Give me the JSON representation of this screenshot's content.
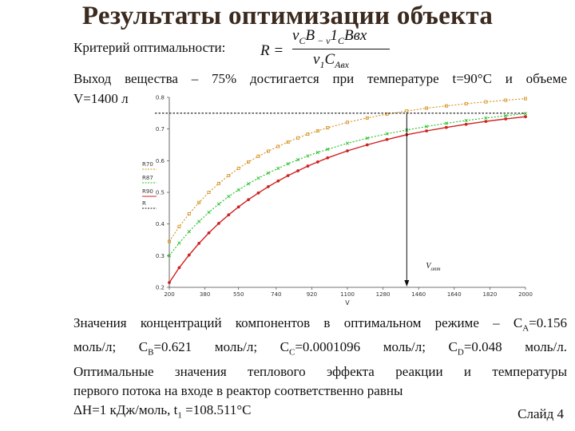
{
  "slide": {
    "title": "Результаты оптимизации объекта",
    "criterion_label": "Критерий оптимальности:",
    "formula": {
      "lhs": "R =",
      "numerator_parts": [
        "ν",
        "C",
        "B",
        " − ν",
        "1",
        "C",
        "Bвх"
      ],
      "denominator_parts": [
        "ν",
        "1",
        "C",
        "Aвх"
      ]
    },
    "yield_line_1": "Выход вещества – 75% достигается при температуре t=90°C и объеме",
    "yield_line_2": "V=1400 л",
    "results_text": {
      "line1": [
        "Значения концентраций компонентов в оптимальном режиме – C",
        "A",
        "=0.156"
      ],
      "line2": [
        "моль/л; C",
        "B",
        "=0.621 моль/л; C",
        "C",
        "=0.0001096 моль/л; C",
        "D",
        "=0.048 моль/л."
      ],
      "line3": "Оптимальные значения теплового эффекта реакции и температуры",
      "line4": "первого потока на входе в реактор соответственно равны",
      "line5": [
        "ΔH=1 кДж/моль, t",
        "1",
        " =108.511°C"
      ]
    },
    "slide_number": "Слайд 4"
  },
  "chart_data": {
    "type": "line",
    "xlabel": "V",
    "ylabel": "",
    "x_ticks": [
      200,
      380,
      550,
      740,
      920,
      1100,
      1280,
      1460,
      1640,
      1820,
      2000
    ],
    "y_ticks": [
      0.2,
      0.3,
      0.4,
      0.5,
      0.6,
      0.7,
      0.8
    ],
    "xlim": [
      200,
      2000
    ],
    "ylim": [
      0.2,
      0.8
    ],
    "x": [
      200,
      250,
      300,
      350,
      400,
      450,
      500,
      550,
      600,
      650,
      700,
      750,
      800,
      850,
      900,
      950,
      1000,
      1100,
      1200,
      1300,
      1400,
      1500,
      1600,
      1700,
      1800,
      1900,
      2000
    ],
    "series": [
      {
        "name": "R70",
        "color": "#d4901c",
        "marker": "square-open",
        "line": "dotted",
        "values": [
          0.345,
          0.392,
          0.432,
          0.468,
          0.5,
          0.528,
          0.553,
          0.576,
          0.596,
          0.614,
          0.63,
          0.645,
          0.659,
          0.672,
          0.684,
          0.694,
          0.704,
          0.721,
          0.735,
          0.747,
          0.757,
          0.766,
          0.773,
          0.78,
          0.786,
          0.791,
          0.796
        ]
      },
      {
        "name": "R87",
        "color": "#25c025",
        "marker": "x",
        "line": "dotted",
        "values": [
          0.3,
          0.34,
          0.376,
          0.408,
          0.437,
          0.463,
          0.487,
          0.508,
          0.527,
          0.545,
          0.561,
          0.576,
          0.59,
          0.603,
          0.615,
          0.626,
          0.636,
          0.655,
          0.671,
          0.685,
          0.697,
          0.708,
          0.718,
          0.727,
          0.735,
          0.742,
          0.749
        ]
      },
      {
        "name": "R90",
        "color": "#d02020",
        "marker": "dot",
        "line": "solid",
        "values": [
          0.215,
          0.262,
          0.302,
          0.339,
          0.372,
          0.402,
          0.429,
          0.454,
          0.477,
          0.498,
          0.518,
          0.536,
          0.553,
          0.568,
          0.583,
          0.596,
          0.609,
          0.631,
          0.65,
          0.667,
          0.682,
          0.694,
          0.705,
          0.715,
          0.724,
          0.732,
          0.739
        ]
      }
    ],
    "extra_legend_entry": "R",
    "legend_position": "left",
    "annotations": {
      "optimum_label": "V_opt",
      "optimum_label_main": "V",
      "optimum_label_sub": "опт",
      "optimum_x": 1400,
      "target_y": 0.75
    },
    "grid": false
  }
}
